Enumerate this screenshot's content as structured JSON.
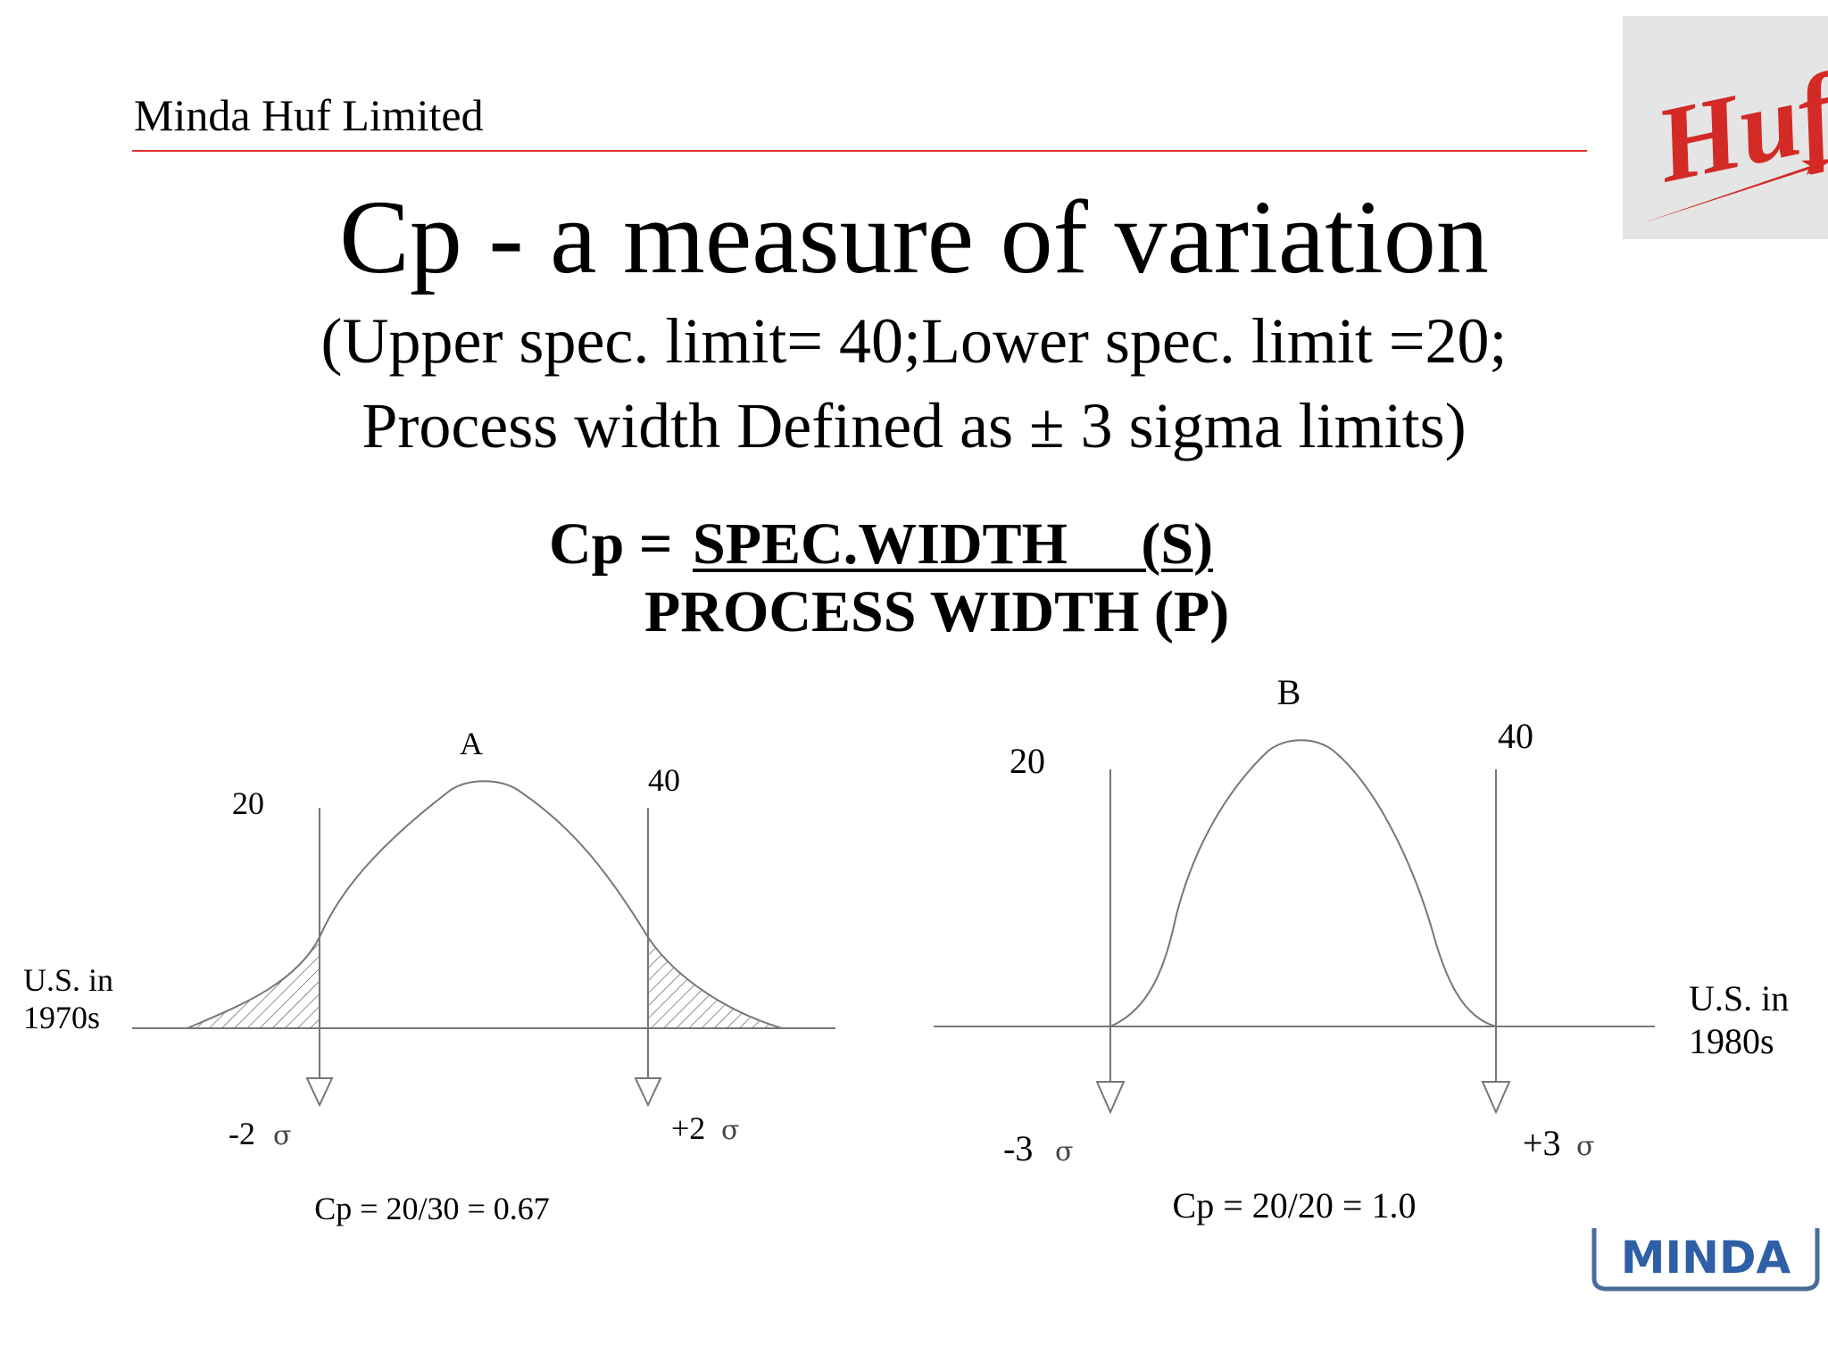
{
  "header": {
    "company": "Minda Huf Limited",
    "logo_top_right": "Huf",
    "logo_bottom_right": "MINDA",
    "accent_color": "#e0302c"
  },
  "title": "Cp - a measure of variation",
  "subtitle": {
    "line1": "(Upper spec. limit= 40;Lower spec. limit =20;",
    "line2": "Process width Defined as ± 3 sigma limits)"
  },
  "formula": {
    "lhs": "Cp =",
    "numerator": "SPEC.WIDTH     (S)",
    "denominator": "PROCESS WIDTH (P)"
  },
  "diagram_a": {
    "label": "A",
    "lsl": "20",
    "usl": "40",
    "caption": "U.S. in\n1970s",
    "caption_line1": "U.S. in",
    "caption_line2": "1970s",
    "lower_sigma": "-2",
    "upper_sigma": "+2",
    "sigma_symbol": "σ",
    "cp_result": "Cp = 20/30 = 0.67"
  },
  "diagram_b": {
    "label": "B",
    "lsl": "20",
    "usl": "40",
    "caption_line1": "U.S. in",
    "caption_line2": "1980s",
    "lower_sigma": "-3",
    "upper_sigma": "+3",
    "sigma_symbol": "σ",
    "cp_result": "Cp = 20/20 = 1.0"
  }
}
